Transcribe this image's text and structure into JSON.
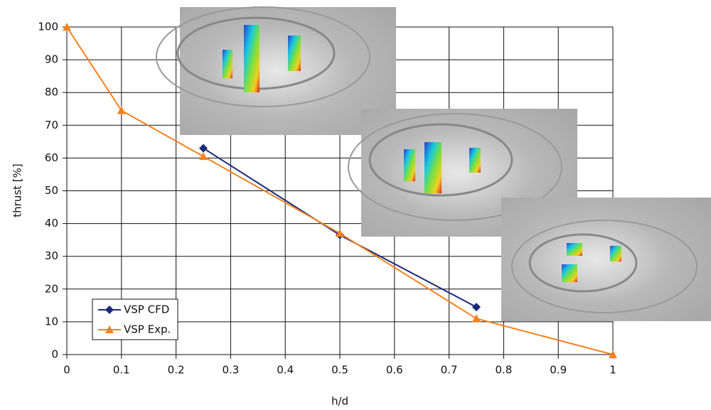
{
  "chart_data": {
    "type": "line",
    "x_label": "h/d",
    "y_label": "thrust [%]",
    "xlim": [
      0,
      1
    ],
    "xticks": [
      0,
      0.1,
      0.2,
      0.3,
      0.4,
      0.5,
      0.6,
      0.7,
      0.8,
      0.9,
      1
    ],
    "ylim": [
      0,
      100
    ],
    "yticks": [
      0,
      10,
      20,
      30,
      40,
      50,
      60,
      70,
      80,
      90,
      100
    ],
    "grid": true,
    "legend": "lower left",
    "series": [
      {
        "name": "VSP CFD",
        "color": "#1a2a7a",
        "marker": "diamond",
        "x": [
          0.25,
          0.5,
          0.75
        ],
        "values": [
          63,
          36.5,
          14.5
        ]
      },
      {
        "name": "VSP Exp.",
        "color": "#f5821f",
        "marker": "triangle",
        "x": [
          0,
          0.1,
          0.25,
          0.5,
          0.75,
          1
        ],
        "values": [
          100,
          74.5,
          60.5,
          37,
          11,
          0
        ]
      }
    ]
  }
}
